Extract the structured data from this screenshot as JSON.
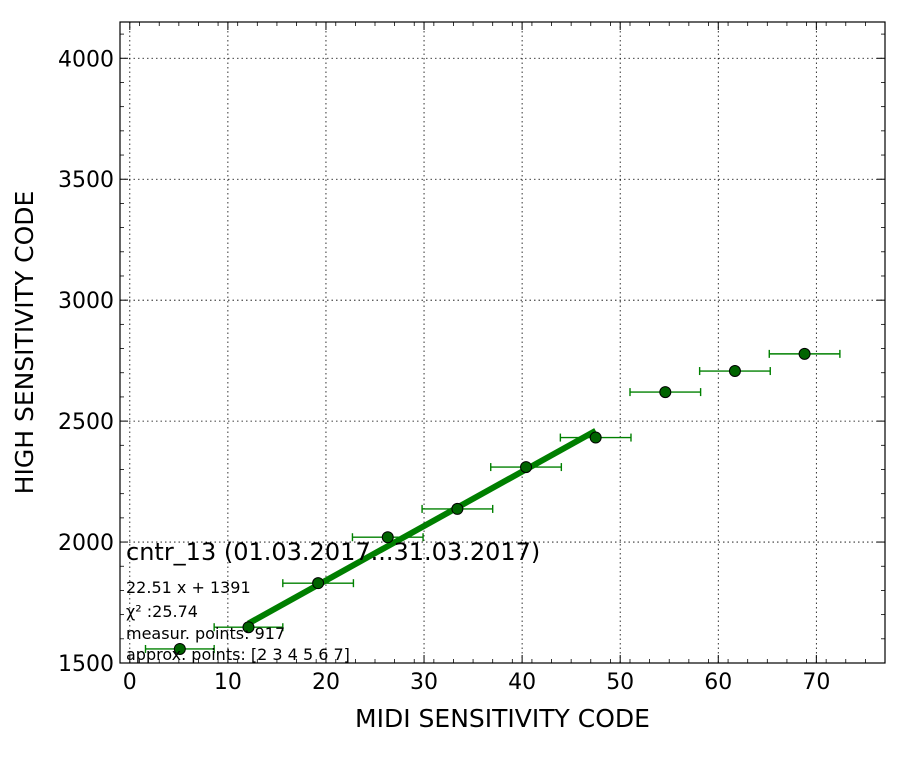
{
  "chart_data": {
    "type": "scatter",
    "xlabel": "MIDI SENSITIVITY CODE",
    "ylabel": "HIGH SENSITIVITY CODE",
    "xlim": [
      -1,
      77
    ],
    "ylim": [
      1500,
      4150
    ],
    "xticks": [
      0,
      10,
      20,
      30,
      40,
      50,
      60,
      70
    ],
    "yticks": [
      1500,
      2000,
      2500,
      3000,
      3500,
      4000
    ],
    "grid": true,
    "colors": {
      "marker": "#006400",
      "fit_line": "#007f00",
      "error_bar": "#008000"
    },
    "points": [
      {
        "x": 5.1,
        "y": 1558,
        "xerr": 3.5
      },
      {
        "x": 12.1,
        "y": 1648,
        "xerr": 3.5
      },
      {
        "x": 19.2,
        "y": 1830,
        "xerr": 3.6
      },
      {
        "x": 26.3,
        "y": 2020,
        "xerr": 3.6
      },
      {
        "x": 33.4,
        "y": 2137,
        "xerr": 3.6
      },
      {
        "x": 40.4,
        "y": 2310,
        "xerr": 3.6
      },
      {
        "x": 47.5,
        "y": 2432,
        "xerr": 3.6
      },
      {
        "x": 54.6,
        "y": 2620,
        "xerr": 3.6
      },
      {
        "x": 61.7,
        "y": 2707,
        "xerr": 3.6
      },
      {
        "x": 68.8,
        "y": 2778,
        "xerr": 3.6
      }
    ],
    "fit": {
      "slope": 22.51,
      "intercept": 1391,
      "x_range": [
        12.1,
        47.5
      ]
    },
    "annotation": {
      "title": "cntr_13 (01.03.2017...31.03.2017)",
      "lines": [
        "22.51 x + 1391",
        "χ² :25.74",
        "measur. points: 917",
        "approx. points: [2 3 4 5 6 7]"
      ]
    }
  }
}
